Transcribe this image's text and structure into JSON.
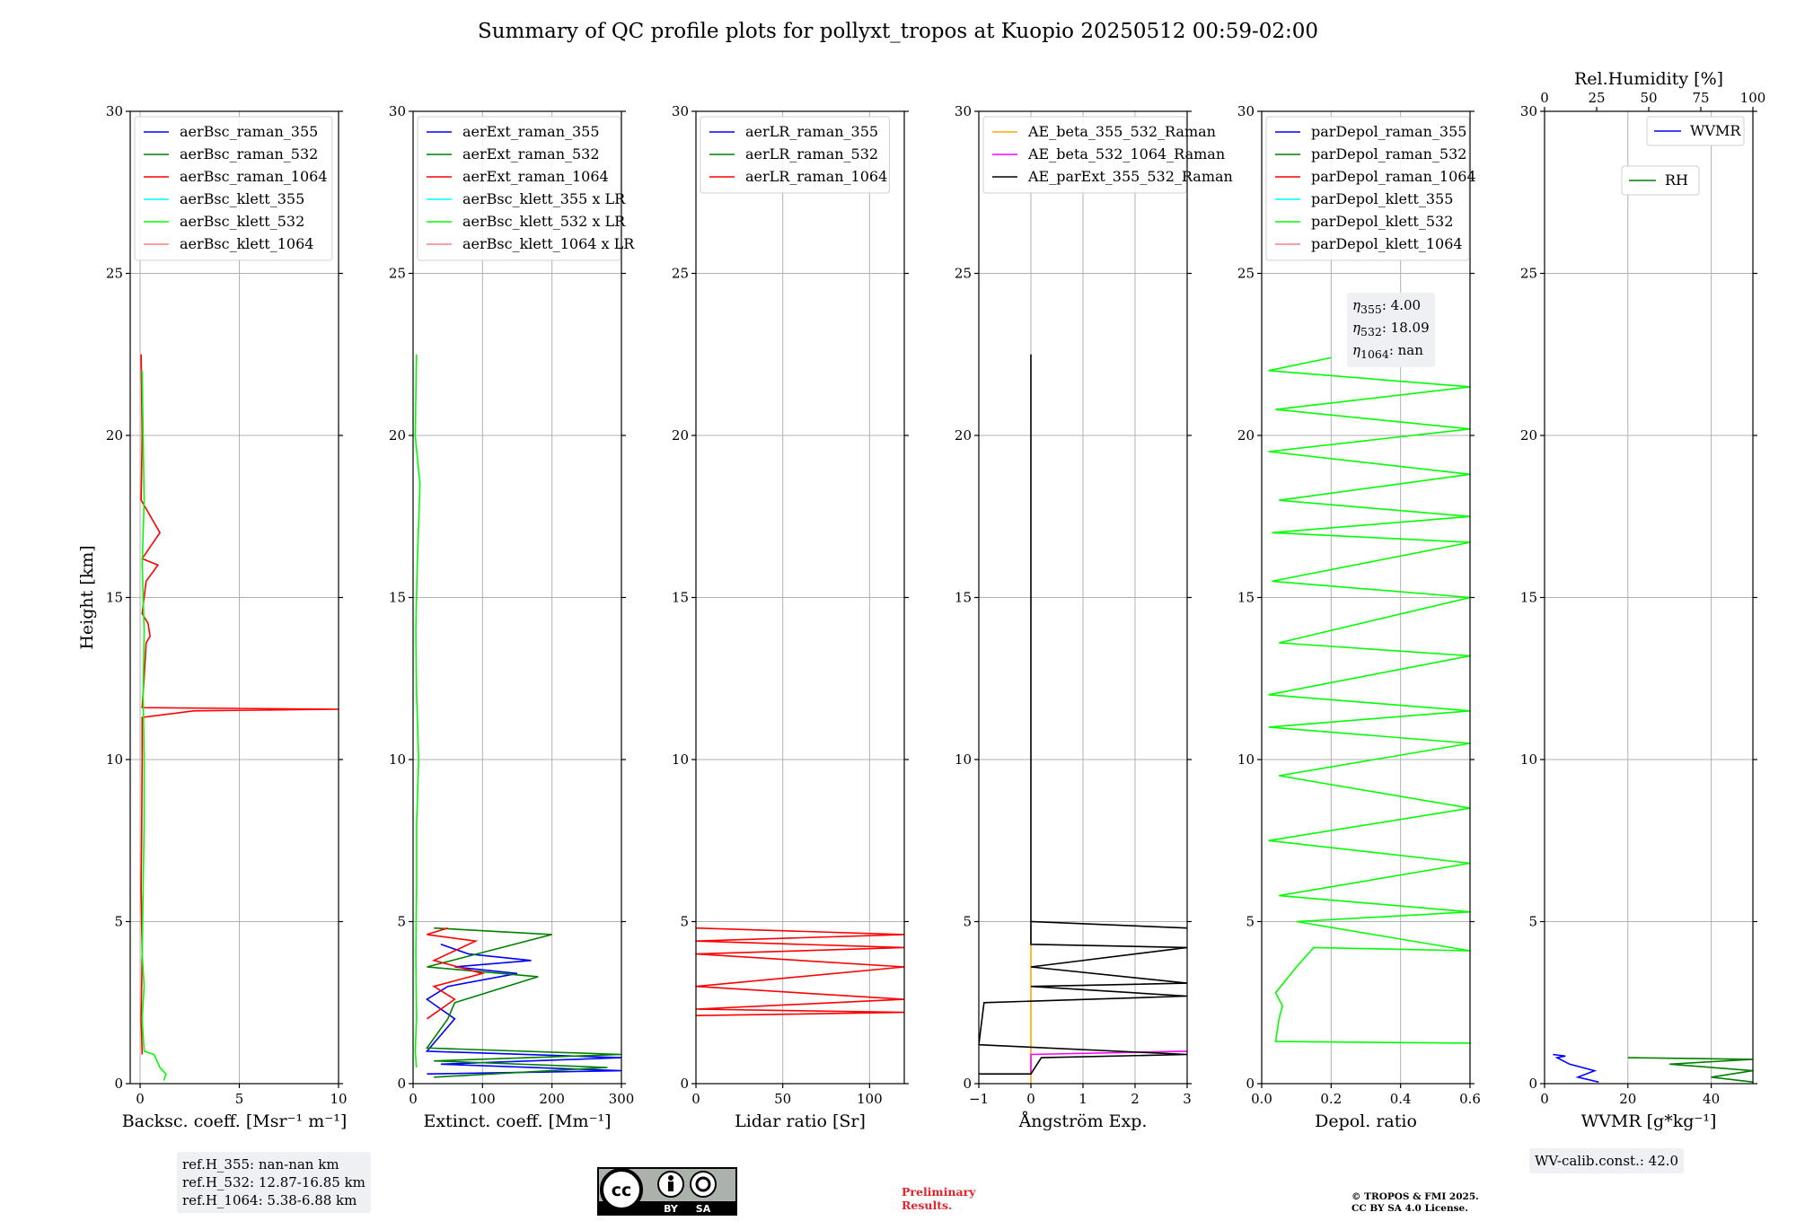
{
  "figure": {
    "title": "Summary of QC profile plots for pollyxt_tropos at Kuopio 20250512 00:59-02:00",
    "ylabel": "Height [km]",
    "preliminary": "Preliminary Results.",
    "copyright_line1": "© TROPOS & FMI 2025.",
    "copyright_line2": "CC BY SA 4.0 License.",
    "license_badge": {
      "text_by": "BY",
      "text_sa": "SA",
      "bg": "#aab2ab",
      "dark": "#000000"
    },
    "ref_heights": [
      "ref.H_355: nan-nan km",
      "ref.H_532: 12.87-16.85 km",
      "ref.H_1064: 5.38-6.88 km"
    ],
    "wv_calib": "WV-calib.const.: 42.0",
    "eta": [
      {
        "sub": "355",
        "text": ": 4.00"
      },
      {
        "sub": "532",
        "text": ": 18.09"
      },
      {
        "sub": "1064",
        "text": ": nan"
      }
    ]
  },
  "chart_data": [
    {
      "type": "line",
      "xlabel": "Backsc. coeff. [Msr⁻¹ m⁻¹]",
      "ylabel": "Height [km]",
      "xlim": [
        -0.5,
        10
      ],
      "ylim": [
        0,
        30
      ],
      "xticks": [
        0,
        5,
        10
      ],
      "yticks": [
        0,
        5,
        10,
        15,
        20,
        25,
        30
      ],
      "grid": true,
      "legend": "top-left",
      "series": [
        {
          "name": "aerBsc_raman_355",
          "color": "#0000ff",
          "points": []
        },
        {
          "name": "aerBsc_raman_532",
          "color": "#008000",
          "points": []
        },
        {
          "name": "aerBsc_raman_1064",
          "color": "#ff0000",
          "points": [
            [
              0.1,
              0.9
            ],
            [
              0.05,
              2
            ],
            [
              0.1,
              4
            ],
            [
              0.05,
              6
            ],
            [
              0.08,
              8
            ],
            [
              0.1,
              10
            ],
            [
              0.1,
              11.3
            ],
            [
              2.7,
              11.5
            ],
            [
              10,
              11.55
            ],
            [
              0.1,
              11.6
            ],
            [
              0.2,
              12.5
            ],
            [
              0.3,
              13.6
            ],
            [
              0.5,
              13.8
            ],
            [
              0.4,
              14.2
            ],
            [
              0.1,
              14.5
            ],
            [
              0.3,
              15.5
            ],
            [
              0.9,
              16
            ],
            [
              0.1,
              16.2
            ],
            [
              1.0,
              17
            ],
            [
              0.05,
              18
            ],
            [
              0.1,
              20
            ],
            [
              0.05,
              22.5
            ]
          ]
        },
        {
          "name": "aerBsc_klett_355",
          "color": "#00ffff",
          "points": []
        },
        {
          "name": "aerBsc_klett_532",
          "color": "#00ff00",
          "points": [
            [
              1.2,
              0.1
            ],
            [
              1.3,
              0.3
            ],
            [
              1,
              0.5
            ],
            [
              0.7,
              0.9
            ],
            [
              0.2,
              1
            ],
            [
              0.1,
              2
            ],
            [
              0.2,
              3
            ],
            [
              0.1,
              4
            ],
            [
              0.15,
              6
            ],
            [
              0.2,
              8
            ],
            [
              0.2,
              10
            ],
            [
              0.15,
              12
            ],
            [
              0.2,
              14
            ],
            [
              0.1,
              16
            ],
            [
              0.2,
              18
            ],
            [
              0.15,
              20
            ],
            [
              0.1,
              22
            ]
          ]
        },
        {
          "name": "aerBsc_klett_1064",
          "color": "#ff7f7f",
          "points": []
        }
      ]
    },
    {
      "type": "line",
      "xlabel": "Extinct. coeff. [Mm⁻¹]",
      "ylabel": "",
      "xlim": [
        0,
        300
      ],
      "ylim": [
        0,
        30
      ],
      "xticks": [
        0,
        100,
        200,
        300
      ],
      "yticks": [
        0,
        5,
        10,
        15,
        20,
        25,
        30
      ],
      "grid": true,
      "legend": "top-left",
      "series": [
        {
          "name": "aerExt_raman_355",
          "color": "#0000ff",
          "points": [
            [
              20,
              0.3
            ],
            [
              300,
              0.4
            ],
            [
              40,
              0.6
            ],
            [
              300,
              0.8
            ],
            [
              20,
              1
            ],
            [
              60,
              2
            ],
            [
              20,
              2.6
            ],
            [
              50,
              3
            ],
            [
              150,
              3.4
            ],
            [
              60,
              3.6
            ],
            [
              170,
              3.8
            ],
            [
              80,
              4.0
            ],
            [
              40,
              4.3
            ]
          ]
        },
        {
          "name": "aerExt_raman_532",
          "color": "#008000",
          "points": [
            [
              30,
              0.2
            ],
            [
              280,
              0.5
            ],
            [
              30,
              0.7
            ],
            [
              300,
              0.9
            ],
            [
              20,
              1.1
            ],
            [
              50,
              2
            ],
            [
              60,
              2.5
            ],
            [
              180,
              3.3
            ],
            [
              20,
              3.6
            ],
            [
              200,
              4.6
            ],
            [
              30,
              4.8
            ]
          ]
        },
        {
          "name": "aerExt_raman_1064",
          "color": "#ff0000",
          "points": [
            [
              20,
              2
            ],
            [
              60,
              2.6
            ],
            [
              30,
              3
            ],
            [
              100,
              3.4
            ],
            [
              30,
              3.8
            ],
            [
              90,
              4.4
            ],
            [
              20,
              4.6
            ],
            [
              50,
              4.8
            ]
          ]
        },
        {
          "name": "aerBsc_klett_355 x LR",
          "color": "#00ffff",
          "points": []
        },
        {
          "name": "aerBsc_klett_532 x LR",
          "color": "#00ff00",
          "points": [
            [
              5,
              0.5
            ],
            [
              3,
              1
            ],
            [
              5,
              2
            ],
            [
              4,
              4
            ],
            [
              5,
              6
            ],
            [
              5,
              8
            ],
            [
              8,
              10
            ],
            [
              5,
              12
            ],
            [
              4,
              14
            ],
            [
              6,
              16
            ],
            [
              10,
              18.5
            ],
            [
              3,
              20
            ],
            [
              5,
              22.5
            ]
          ]
        },
        {
          "name": "aerBsc_klett_1064 x LR",
          "color": "#ff7f7f",
          "points": []
        }
      ]
    },
    {
      "type": "line",
      "xlabel": "Lidar ratio [Sr]",
      "ylabel": "",
      "xlim": [
        0,
        120
      ],
      "ylim": [
        0,
        30
      ],
      "xticks": [
        0,
        50,
        100
      ],
      "yticks": [
        0,
        5,
        10,
        15,
        20,
        25,
        30
      ],
      "grid": true,
      "legend": "top-left",
      "series": [
        {
          "name": "aerLR_raman_355",
          "color": "#0000ff",
          "points": []
        },
        {
          "name": "aerLR_raman_532",
          "color": "#008000",
          "points": []
        },
        {
          "name": "aerLR_raman_1064",
          "color": "#ff0000",
          "points": [
            [
              0,
              2.1
            ],
            [
              120,
              2.2
            ],
            [
              0,
              2.3
            ],
            [
              120,
              2.6
            ],
            [
              0,
              3.0
            ],
            [
              120,
              3.6
            ],
            [
              0,
              4.0
            ],
            [
              120,
              4.2
            ],
            [
              0,
              4.4
            ],
            [
              120,
              4.6
            ],
            [
              0,
              4.8
            ]
          ]
        }
      ]
    },
    {
      "type": "line",
      "xlabel": "Ångström Exp.",
      "ylabel": "",
      "xlim": [
        -1,
        3
      ],
      "ylim": [
        0,
        30
      ],
      "xticks": [
        -1,
        0,
        1,
        2,
        3
      ],
      "yticks": [
        0,
        5,
        10,
        15,
        20,
        25,
        30
      ],
      "grid": true,
      "legend": "top-left",
      "series": [
        {
          "name": "AE_beta_355_532_Raman",
          "color": "#ffa500",
          "points": [
            [
              0,
              0
            ],
            [
              0,
              4.9
            ]
          ]
        },
        {
          "name": "AE_beta_532_1064_Raman",
          "color": "#ff00ff",
          "points": [
            [
              0,
              0.3
            ],
            [
              0,
              0.9
            ],
            [
              3,
              1.0
            ]
          ]
        },
        {
          "name": "AE_parExt_355_532_Raman",
          "color": "#000000",
          "points": [
            [
              -1,
              0.3
            ],
            [
              0,
              0.3
            ],
            [
              0.2,
              0.8
            ],
            [
              3,
              0.9
            ],
            [
              -1,
              1.2
            ],
            [
              -0.9,
              2.5
            ],
            [
              3,
              2.7
            ],
            [
              0,
              3.0
            ],
            [
              3,
              3.1
            ],
            [
              0,
              3.6
            ],
            [
              3,
              4.2
            ],
            [
              0,
              4.3
            ],
            [
              0,
              5.0
            ],
            [
              3,
              4.8
            ],
            [
              0,
              5.0
            ],
            [
              0,
              22.5
            ]
          ]
        }
      ]
    },
    {
      "type": "line",
      "xlabel": "Depol. ratio",
      "ylabel": "",
      "xlim": [
        0,
        0.6
      ],
      "ylim": [
        0,
        30
      ],
      "xticks": [
        0.0,
        0.2,
        0.4,
        0.6
      ],
      "yticks": [
        0,
        5,
        10,
        15,
        20,
        25,
        30
      ],
      "grid": true,
      "legend": "top-left",
      "series": [
        {
          "name": "parDepol_raman_355",
          "color": "#0000ff",
          "points": []
        },
        {
          "name": "parDepol_raman_532",
          "color": "#008000",
          "points": []
        },
        {
          "name": "parDepol_raman_1064",
          "color": "#ff0000",
          "points": []
        },
        {
          "name": "parDepol_klett_355",
          "color": "#00ffff",
          "points": []
        },
        {
          "name": "parDepol_klett_532",
          "color": "#00ff00",
          "points": [
            [
              0.6,
              1.25
            ],
            [
              0.04,
              1.3
            ],
            [
              0.05,
              2.0
            ],
            [
              0.06,
              2.4
            ],
            [
              0.04,
              2.8
            ],
            [
              0.1,
              3.6
            ],
            [
              0.15,
              4.2
            ],
            [
              0.6,
              4.1
            ],
            [
              0.1,
              5.0
            ],
            [
              0.6,
              5.3
            ],
            [
              0.05,
              5.8
            ],
            [
              0.6,
              6.8
            ],
            [
              0.02,
              7.5
            ],
            [
              0.6,
              8.5
            ],
            [
              0.05,
              9.5
            ],
            [
              0.6,
              10.5
            ],
            [
              0.02,
              11
            ],
            [
              0.6,
              11.5
            ],
            [
              0.02,
              12
            ],
            [
              0.6,
              13.2
            ],
            [
              0.05,
              13.6
            ],
            [
              0.6,
              15
            ],
            [
              0.03,
              15.5
            ],
            [
              0.6,
              16.7
            ],
            [
              0.03,
              17
            ],
            [
              0.6,
              17.5
            ],
            [
              0.05,
              18
            ],
            [
              0.6,
              18.8
            ],
            [
              0.02,
              19.5
            ],
            [
              0.6,
              20.2
            ],
            [
              0.04,
              20.8
            ],
            [
              0.6,
              21.5
            ],
            [
              0.02,
              22
            ],
            [
              0.2,
              22.4
            ]
          ]
        },
        {
          "name": "parDepol_klett_1064",
          "color": "#ff7f7f",
          "points": []
        }
      ]
    },
    {
      "type": "line",
      "xlabel": "WVMR [g*kg⁻¹]",
      "ylabel": "",
      "xlim": [
        0,
        50
      ],
      "ylim": [
        0,
        30
      ],
      "xticks": [
        0,
        20,
        40
      ],
      "yticks": [
        0,
        5,
        10,
        15,
        20,
        25,
        30
      ],
      "grid": true,
      "legend": "top-right",
      "x2label": "Rel.Humidity [%]",
      "x2lim": [
        0,
        100
      ],
      "x2ticks": [
        0,
        25,
        50,
        75,
        100
      ],
      "series": [
        {
          "name": "WVMR",
          "color": "#0000ff",
          "points": [
            [
              13,
              0.05
            ],
            [
              8,
              0.2
            ],
            [
              12,
              0.4
            ],
            [
              6,
              0.6
            ],
            [
              3,
              0.8
            ],
            [
              5,
              0.85
            ],
            [
              2,
              0.9
            ]
          ]
        },
        {
          "name": "RH",
          "color": "#008000",
          "points": [
            [
              50,
              0.05
            ],
            [
              40,
              0.2
            ],
            [
              50,
              0.4
            ],
            [
              30,
              0.6
            ],
            [
              50,
              0.75
            ],
            [
              20,
              0.8
            ]
          ]
        }
      ]
    }
  ]
}
